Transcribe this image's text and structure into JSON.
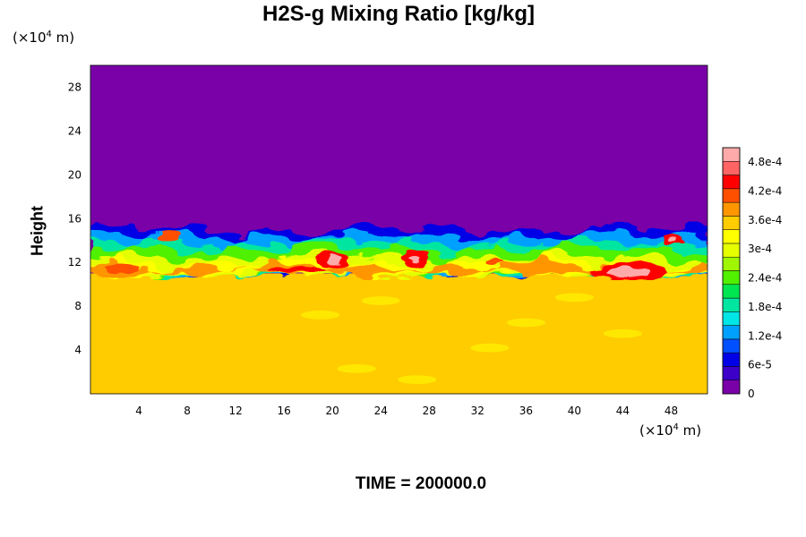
{
  "chart_data": {
    "type": "heatmap",
    "title": "H2S-g Mixing Ratio [kg/kg]",
    "ylabel": "Height",
    "xlabel": "",
    "x_unit": {
      "prefix": "(×10",
      "exp": "4",
      "suffix": " m)"
    },
    "y_unit": {
      "prefix": "(×10",
      "exp": "4",
      "suffix": " m)"
    },
    "xlim": [
      0,
      51
    ],
    "ylim": [
      0,
      30
    ],
    "x_ticks": [
      4,
      8,
      12,
      16,
      20,
      24,
      28,
      32,
      36,
      40,
      44,
      48
    ],
    "y_ticks": [
      4,
      8,
      12,
      16,
      20,
      24,
      28
    ],
    "colorbar": {
      "vmin": 0,
      "vmax": 0.00051,
      "tick_labels": [
        "0",
        "6e-5",
        "1.2e-4",
        "1.8e-4",
        "2.4e-4",
        "3e-4",
        "3.6e-4",
        "4.2e-4",
        "4.8e-4"
      ],
      "tick_values": [
        0,
        6e-05,
        0.00012,
        0.00018,
        0.00024,
        0.0003,
        0.00036,
        0.00042,
        0.00048
      ],
      "colors": [
        "#7a00a8",
        "#3c00c8",
        "#0000e6",
        "#0050ff",
        "#00a0ff",
        "#00e6e6",
        "#00e6a0",
        "#00e650",
        "#50f000",
        "#a0f500",
        "#e6ff00",
        "#ffff00",
        "#ffcc00",
        "#ff9600",
        "#ff5000",
        "#ff0000",
        "#ff6464",
        "#ffaaaa"
      ]
    },
    "regions": {
      "lower_layer": {
        "top_height": 11,
        "value": 0.00034
      },
      "upper_layer": {
        "bottom_height": 15,
        "value": 0
      },
      "mixing_zone": {
        "from_height": 11,
        "to_height": 15,
        "values": "0 to 5.1e-4"
      }
    },
    "time_label": "TIME = 200000.0"
  }
}
